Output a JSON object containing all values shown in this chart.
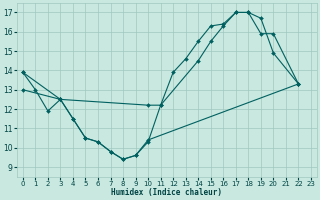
{
  "bg_color": "#c8e8e0",
  "line_color": "#006060",
  "grid_color": "#a0c8c0",
  "xlabel": "Humidex (Indice chaleur)",
  "xlim": [
    -0.5,
    23.5
  ],
  "ylim": [
    8.5,
    17.5
  ],
  "yticks": [
    9,
    10,
    11,
    12,
    13,
    14,
    15,
    16,
    17
  ],
  "xticks": [
    0,
    1,
    2,
    3,
    4,
    5,
    6,
    7,
    8,
    9,
    10,
    11,
    12,
    13,
    14,
    15,
    16,
    17,
    18,
    19,
    20,
    21,
    22,
    23
  ],
  "lines": [
    {
      "x": [
        0,
        1,
        2,
        3,
        4,
        5,
        6,
        7,
        8,
        9,
        10,
        11,
        12,
        13,
        14,
        15,
        16,
        17,
        18,
        19,
        20,
        22
      ],
      "y": [
        13.9,
        13.0,
        11.9,
        12.5,
        11.5,
        10.5,
        10.3,
        9.8,
        9.4,
        9.6,
        10.3,
        12.2,
        13.9,
        14.6,
        15.5,
        16.3,
        16.4,
        17.0,
        17.0,
        16.7,
        14.9,
        13.3
      ]
    },
    {
      "x": [
        0,
        3,
        10,
        11,
        14,
        15,
        16,
        17,
        18,
        19,
        20,
        22
      ],
      "y": [
        13.9,
        12.5,
        12.2,
        12.2,
        14.5,
        15.5,
        16.3,
        17.0,
        17.0,
        15.9,
        15.9,
        13.3
      ]
    },
    {
      "x": [
        0,
        3,
        4,
        5,
        6,
        7,
        8,
        9,
        10,
        22
      ],
      "y": [
        13.0,
        12.5,
        11.5,
        10.5,
        10.3,
        9.8,
        9.4,
        9.6,
        10.4,
        13.3
      ]
    }
  ]
}
